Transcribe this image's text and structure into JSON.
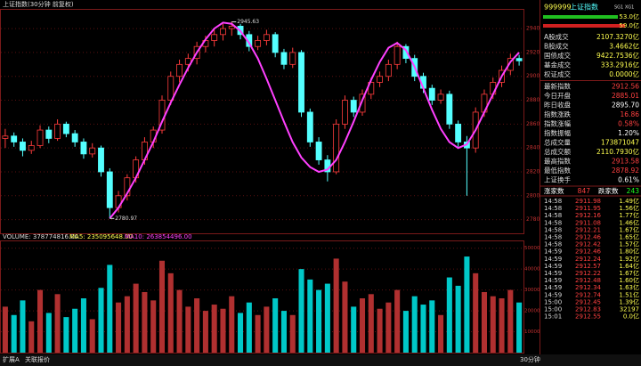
{
  "chart_data": {
    "type": "candlestick",
    "title": "上证指数(30分钟 前复权)",
    "candles": [
      [
        2848,
        2856,
        2840,
        2850
      ],
      [
        2850,
        2853,
        2841,
        2845
      ],
      [
        2845,
        2848,
        2833,
        2838
      ],
      [
        2838,
        2846,
        2835,
        2842
      ],
      [
        2842,
        2859,
        2840,
        2855
      ],
      [
        2855,
        2858,
        2844,
        2848
      ],
      [
        2848,
        2864,
        2846,
        2860
      ],
      [
        2860,
        2862,
        2849,
        2852
      ],
      [
        2852,
        2855,
        2841,
        2845
      ],
      [
        2845,
        2848,
        2831,
        2835
      ],
      [
        2835,
        2844,
        2832,
        2840
      ],
      [
        2840,
        2842,
        2816,
        2820
      ],
      [
        2820,
        2823,
        2781,
        2790
      ],
      [
        2790,
        2804,
        2786,
        2800
      ],
      [
        2800,
        2818,
        2796,
        2815
      ],
      [
        2815,
        2833,
        2811,
        2830
      ],
      [
        2830,
        2849,
        2826,
        2845
      ],
      [
        2845,
        2858,
        2840,
        2855
      ],
      [
        2855,
        2884,
        2852,
        2880
      ],
      [
        2880,
        2904,
        2876,
        2900
      ],
      [
        2900,
        2914,
        2895,
        2910
      ],
      [
        2910,
        2919,
        2904,
        2915
      ],
      [
        2915,
        2929,
        2910,
        2925
      ],
      [
        2925,
        2934,
        2920,
        2930
      ],
      [
        2930,
        2939,
        2925,
        2935
      ],
      [
        2935,
        2944,
        2930,
        2940
      ],
      [
        2940,
        2946,
        2934,
        2942
      ],
      [
        2942,
        2944,
        2931,
        2935
      ],
      [
        2935,
        2938,
        2921,
        2925
      ],
      [
        2925,
        2934,
        2922,
        2930
      ],
      [
        2930,
        2939,
        2926,
        2935
      ],
      [
        2935,
        2937,
        2916,
        2920
      ],
      [
        2920,
        2923,
        2906,
        2910
      ],
      [
        2910,
        2924,
        2907,
        2920
      ],
      [
        2920,
        2922,
        2866,
        2870
      ],
      [
        2870,
        2873,
        2841,
        2845
      ],
      [
        2845,
        2849,
        2826,
        2830
      ],
      [
        2830,
        2834,
        2812,
        2820
      ],
      [
        2820,
        2864,
        2818,
        2860
      ],
      [
        2860,
        2884,
        2856,
        2880
      ],
      [
        2880,
        2883,
        2866,
        2870
      ],
      [
        2870,
        2889,
        2867,
        2885
      ],
      [
        2885,
        2899,
        2881,
        2895
      ],
      [
        2895,
        2904,
        2891,
        2900
      ],
      [
        2900,
        2914,
        2896,
        2910
      ],
      [
        2910,
        2929,
        2906,
        2925
      ],
      [
        2925,
        2927,
        2911,
        2915
      ],
      [
        2915,
        2918,
        2896,
        2900
      ],
      [
        2900,
        2903,
        2886,
        2890
      ],
      [
        2890,
        2893,
        2876,
        2880
      ],
      [
        2880,
        2889,
        2877,
        2885
      ],
      [
        2885,
        2888,
        2856,
        2860
      ],
      [
        2860,
        2863,
        2841,
        2845
      ],
      [
        2845,
        2850,
        2800,
        2840
      ],
      [
        2840,
        2874,
        2836,
        2870
      ],
      [
        2870,
        2889,
        2866,
        2885
      ],
      [
        2885,
        2899,
        2881,
        2895
      ],
      [
        2895,
        2909,
        2891,
        2905
      ],
      [
        2905,
        2919,
        2901,
        2915
      ],
      [
        2915,
        2918,
        2909,
        2913
      ]
    ],
    "curve": {
      "color": "#ff40ff",
      "values": [
        null,
        null,
        null,
        null,
        null,
        null,
        null,
        null,
        null,
        null,
        null,
        null,
        2781,
        2790,
        2802,
        2815,
        2830,
        2845,
        2862,
        2878,
        2893,
        2907,
        2920,
        2931,
        2940,
        2945,
        2944,
        2938,
        2928,
        2915,
        2898,
        2880,
        2862,
        2845,
        2832,
        2824,
        2820,
        2822,
        2830,
        2845,
        2862,
        2880,
        2897,
        2912,
        2924,
        2928,
        2922,
        2908,
        2890,
        2872,
        2856,
        2845,
        2840,
        2843,
        2855,
        2870,
        2885,
        2900,
        2912,
        2920
      ]
    },
    "annotations": [
      2945.63,
      2780.97
    ],
    "ylim": [
      2770,
      2955
    ],
    "yticks": [
      2780,
      2800,
      2820,
      2840,
      2860,
      2880,
      2900,
      2920,
      2940
    ],
    "grid": true,
    "up_color": "#ff3c3c",
    "down_color": "#54ffff",
    "volume": {
      "label": "VOLUME: 378774816.00",
      "ma5": "MA5: 235095648.00",
      "ma10": "MA10: 263854496.00",
      "values": [
        22000,
        18000,
        25000,
        15000,
        30000,
        19000,
        28000,
        17000,
        21000,
        26000,
        16000,
        31000,
        42000,
        24000,
        27000,
        33000,
        29000,
        25000,
        44000,
        38000,
        30000,
        22000,
        26000,
        20000,
        23000,
        21000,
        27000,
        19000,
        24000,
        18000,
        22000,
        26000,
        20000,
        18000,
        40000,
        35000,
        30000,
        33000,
        45000,
        34000,
        22000,
        26000,
        28000,
        21000,
        24000,
        30000,
        20000,
        27000,
        23000,
        25000,
        18000,
        36000,
        32000,
        46000,
        38000,
        29000,
        27000,
        26000,
        30000,
        24000
      ],
      "ylim": [
        0,
        52000
      ],
      "yticks": [
        10000,
        20000,
        30000,
        40000,
        50000
      ]
    }
  },
  "panel": {
    "code": "999999",
    "name": "上证指数",
    "tags": "SG1 XG1",
    "bar1": "53.0亿",
    "bar2": "59.0亿",
    "turnover": [
      [
        "A股成交",
        "2107.3270亿"
      ],
      [
        "B股成交",
        "3.4662亿"
      ],
      [
        "国债成交",
        "9422.7536亿"
      ],
      [
        "基金成交",
        "333.2916亿"
      ],
      [
        "权证成交",
        "0.0000亿"
      ]
    ],
    "stats": [
      [
        "最新指数",
        "2912.56"
      ],
      [
        "今日开盘",
        "2885.01"
      ],
      [
        "昨日收盘",
        "2895.70"
      ],
      [
        "指数涨跌",
        "16.86"
      ],
      [
        "指数涨幅",
        "0.58%"
      ],
      [
        "指数振幅",
        "1.20%"
      ],
      [
        "总成交量",
        "173871047"
      ],
      [
        "总成交额",
        "2110.7930亿"
      ],
      [
        "最高指数",
        "2913.58"
      ],
      [
        "最低指数",
        "2878.92"
      ],
      [
        "上证换手",
        "0.61%"
      ]
    ],
    "breadth": [
      "涨家数",
      "847",
      "跌家数",
      "243"
    ],
    "ticks": [
      [
        "14:58",
        "2911.98",
        "1.49亿"
      ],
      [
        "14:58",
        "2911.95",
        "1.56亿"
      ],
      [
        "14:58",
        "2912.16",
        "1.77亿"
      ],
      [
        "14:58",
        "2911.08",
        "1.46亿"
      ],
      [
        "14:58",
        "2912.21",
        "1.67亿"
      ],
      [
        "14:58",
        "2912.46",
        "1.65亿"
      ],
      [
        "14:58",
        "2912.42",
        "1.57亿"
      ],
      [
        "14:59",
        "2912.46",
        "1.80亿"
      ],
      [
        "14:59",
        "2912.24",
        "1.92亿"
      ],
      [
        "14:59",
        "2912.57",
        "1.64亿"
      ],
      [
        "14:59",
        "2912.22",
        "1.67亿"
      ],
      [
        "14:59",
        "2912.48",
        "1.60亿"
      ],
      [
        "14:59",
        "2912.34",
        "1.63亿"
      ],
      [
        "14:59",
        "2912.74",
        "1.51亿"
      ],
      [
        "15:00",
        "2912.45",
        "1.39亿"
      ],
      [
        "15:00",
        "2912.83",
        "32197"
      ],
      [
        "15:01",
        "2912.55",
        "0.0亿"
      ]
    ]
  },
  "footer": {
    "tab1": "扩展A",
    "tab2": "关联报价",
    "period": "30分钟"
  }
}
